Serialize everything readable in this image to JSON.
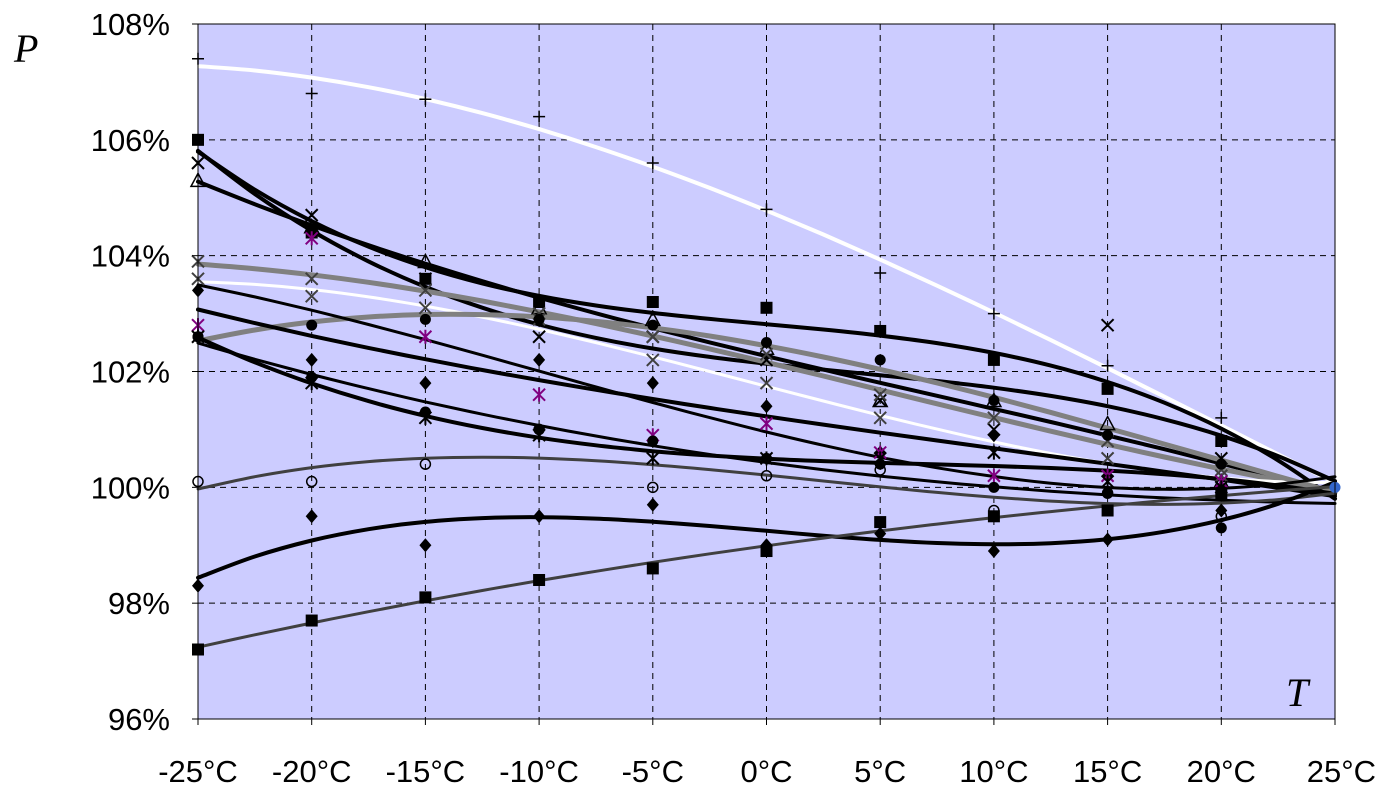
{
  "chart_data": {
    "type": "scatter",
    "title": "",
    "ylabel": "P",
    "xlabel": "T",
    "x": [
      -25,
      -20,
      -15,
      -10,
      -5,
      0,
      5,
      10,
      15,
      20,
      25
    ],
    "x_tick_labels": [
      "-25°C",
      "-20°C",
      "-15°C",
      "-10°C",
      "-5°C",
      "0°C",
      "5°C",
      "10°C",
      "15°C",
      "20°C",
      "25°C"
    ],
    "y_tick_labels": [
      "96%",
      "98%",
      "100%",
      "102%",
      "104%",
      "106%",
      "108%"
    ],
    "y_ticks": [
      96,
      98,
      100,
      102,
      104,
      106,
      108
    ],
    "ylim": [
      96,
      108
    ],
    "xlim": [
      -25,
      25
    ],
    "grid": true,
    "legend": "none",
    "colors": {
      "plot_background": "#ccccff",
      "grid": "#000000",
      "curve_black": "#000000",
      "curve_white": "#ffffff",
      "curve_gray": "#808080",
      "curve_darkgray": "#404040",
      "marker_purple": "#800080",
      "marker_blue": "#3366cc"
    },
    "series": [
      {
        "marker": "plus",
        "color": "#000000",
        "curve": "#ffffff",
        "curve_width": 4,
        "values": [
          107.4,
          106.8,
          106.7,
          106.4,
          105.6,
          104.8,
          103.7,
          103.0,
          102.1,
          101.2,
          100.0
        ]
      },
      {
        "marker": "square",
        "color": "#000000",
        "curve": "#000000",
        "curve_width": 4,
        "values": [
          106.0,
          104.4,
          103.6,
          103.2,
          103.2,
          103.1,
          102.7,
          102.2,
          101.7,
          100.8,
          100.0
        ]
      },
      {
        "marker": "x",
        "color": "#000000",
        "curve": "#000000",
        "curve_width": 4,
        "values": [
          105.6,
          104.7,
          103.6,
          102.6,
          102.6,
          102.2,
          101.5,
          101.0,
          102.8,
          100.5,
          100.0
        ]
      },
      {
        "marker": "triangle",
        "color": "#000000",
        "curve": "#000000",
        "curve_width": 4,
        "values": [
          105.3,
          104.5,
          103.9,
          103.1,
          102.9,
          102.4,
          101.5,
          101.5,
          101.1,
          100.1,
          100.0
        ]
      },
      {
        "marker": "x",
        "color": "#404040",
        "curve": "#808080",
        "curve_width": 5,
        "values": [
          103.9,
          103.6,
          103.4,
          103.0,
          102.6,
          102.3,
          101.6,
          101.2,
          100.8,
          100.2,
          100.0
        ]
      },
      {
        "marker": "x",
        "color": "#404040",
        "curve": "#ffffff",
        "curve_width": 3,
        "values": [
          103.6,
          103.3,
          103.1,
          102.9,
          102.2,
          101.8,
          101.2,
          100.6,
          100.5,
          100.3,
          100.0
        ]
      },
      {
        "marker": "circle-filled",
        "color": "#000000",
        "curve": "#808080",
        "curve_width": 5,
        "values": [
          102.6,
          102.8,
          102.9,
          102.9,
          102.8,
          102.5,
          102.2,
          101.5,
          100.9,
          100.4,
          100.0
        ]
      },
      {
        "marker": "diamond",
        "color": "#000000",
        "curve": "#000000",
        "curve_width": 4,
        "values": [
          103.4,
          102.2,
          101.8,
          102.2,
          101.8,
          101.4,
          100.6,
          100.9,
          100.2,
          100.0,
          100.0
        ]
      },
      {
        "marker": "star",
        "color": "#800080",
        "curve": "#000000",
        "curve_width": 3,
        "values": [
          102.8,
          104.3,
          102.6,
          101.6,
          100.9,
          101.1,
          100.6,
          100.2,
          100.2,
          100.1,
          100.0
        ]
      },
      {
        "marker": "circle-filled",
        "color": "#000000",
        "curve": "#000000",
        "curve_width": 3,
        "values": [
          102.6,
          101.9,
          101.3,
          101.0,
          100.8,
          100.5,
          100.4,
          100.0,
          99.9,
          99.3,
          100.0
        ]
      },
      {
        "marker": "asterisk",
        "color": "#000000",
        "curve": "#000000",
        "curve_width": 4,
        "values": [
          102.6,
          101.8,
          101.2,
          100.9,
          100.5,
          100.5,
          100.5,
          100.6,
          100.1,
          100.0,
          100.0
        ]
      },
      {
        "marker": "circle-open",
        "color": "#000000",
        "curve": "#404040",
        "curve_width": 3,
        "values": [
          100.1,
          100.1,
          100.4,
          101.0,
          100.0,
          100.2,
          100.3,
          99.6,
          99.9,
          99.5,
          100.0
        ]
      },
      {
        "marker": "diamond",
        "color": "#000000",
        "curve": "#000000",
        "curve_width": 4,
        "values": [
          98.3,
          99.5,
          99.0,
          99.5,
          99.7,
          99.0,
          99.2,
          98.9,
          99.1,
          99.6,
          100.0
        ]
      },
      {
        "marker": "square",
        "color": "#000000",
        "curve": "#404040",
        "curve_width": 3,
        "values": [
          97.2,
          97.7,
          98.1,
          98.4,
          98.6,
          98.9,
          99.4,
          99.5,
          99.6,
          99.9,
          100.0
        ]
      }
    ]
  }
}
